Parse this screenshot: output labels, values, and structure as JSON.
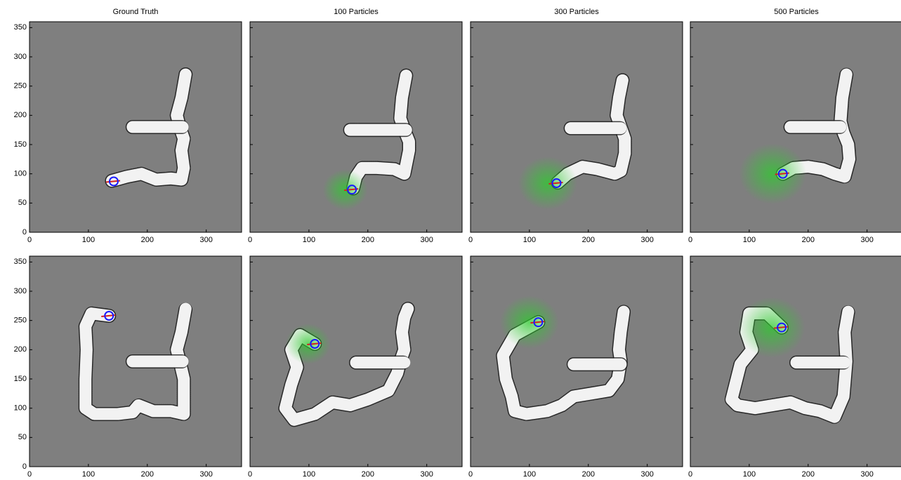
{
  "chart_data": [
    {
      "type": "map",
      "title": "Ground Truth",
      "xlim": [
        0,
        360
      ],
      "ylim": [
        0,
        360
      ],
      "xticks": [
        0,
        100,
        200,
        300
      ],
      "yticks": [
        0,
        50,
        100,
        150,
        200,
        250,
        300,
        350
      ],
      "x": [
        140,
        165,
        190,
        215,
        240,
        258,
        262,
        258,
        262,
        255,
        250,
        258,
        265
      ],
      "y": [
        88,
        95,
        100,
        90,
        92,
        90,
        110,
        140,
        160,
        180,
        200,
        230,
        270
      ],
      "branch_x": [
        175,
        260
      ],
      "branch_y": [
        180,
        180
      ],
      "robot_x": 143,
      "robot_y": 87
    },
    {
      "type": "map",
      "title": "100 Particles",
      "xlim": [
        0,
        360
      ],
      "ylim": [
        0,
        360
      ],
      "xticks": [
        0,
        100,
        200,
        300
      ],
      "yticks": [
        0,
        50,
        100,
        150,
        200,
        250,
        300,
        350
      ],
      "x": [
        175,
        180,
        190,
        215,
        245,
        262,
        270,
        270,
        262,
        255,
        258,
        265
      ],
      "y": [
        75,
        95,
        110,
        110,
        108,
        100,
        140,
        155,
        175,
        195,
        230,
        268
      ],
      "branch_x": [
        170,
        265
      ],
      "branch_y": [
        175,
        175
      ],
      "robot_x": 173,
      "robot_y": 73
    },
    {
      "type": "map",
      "title": "300 Particles",
      "xlim": [
        0,
        360
      ],
      "ylim": [
        0,
        360
      ],
      "xticks": [
        0,
        100,
        200,
        300
      ],
      "yticks": [
        0,
        50,
        100,
        150,
        200,
        250,
        300,
        350
      ],
      "x": [
        148,
        165,
        190,
        215,
        245,
        255,
        262,
        262,
        255,
        248,
        252,
        258
      ],
      "y": [
        85,
        100,
        112,
        108,
        100,
        105,
        135,
        160,
        180,
        200,
        230,
        260
      ],
      "branch_x": [
        170,
        255
      ],
      "branch_y": [
        178,
        178
      ],
      "robot_x": 146,
      "robot_y": 84
    },
    {
      "type": "map",
      "title": "500 Particles",
      "xlim": [
        0,
        360
      ],
      "ylim": [
        0,
        360
      ],
      "xticks": [
        0,
        100,
        200,
        300
      ],
      "yticks": [
        0,
        50,
        100,
        150,
        200,
        250,
        300,
        350
      ],
      "x": [
        157,
        175,
        200,
        225,
        245,
        262,
        270,
        268,
        260,
        255,
        258,
        265
      ],
      "y": [
        100,
        110,
        112,
        108,
        100,
        95,
        125,
        150,
        170,
        190,
        230,
        270
      ],
      "branch_x": [
        170,
        255
      ],
      "branch_y": [
        180,
        180
      ],
      "robot_x": 157,
      "robot_y": 100
    },
    {
      "type": "map",
      "xlim": [
        0,
        360
      ],
      "ylim": [
        0,
        360
      ],
      "xticks": [
        0,
        100,
        200,
        300
      ],
      "yticks": [
        0,
        50,
        100,
        150,
        200,
        250,
        300,
        350
      ],
      "x": [
        135,
        105,
        95,
        97,
        95,
        95,
        110,
        150,
        175,
        185,
        210,
        240,
        262,
        262,
        255,
        250,
        258,
        265
      ],
      "y": [
        258,
        262,
        240,
        200,
        150,
        100,
        90,
        90,
        93,
        105,
        95,
        95,
        90,
        150,
        180,
        200,
        230,
        270
      ],
      "branch_x": [
        175,
        260
      ],
      "branch_y": [
        180,
        180
      ],
      "robot_x": 135,
      "robot_y": 258
    },
    {
      "type": "map",
      "xlim": [
        0,
        360
      ],
      "ylim": [
        0,
        360
      ],
      "xticks": [
        0,
        100,
        200,
        300
      ],
      "yticks": [
        0,
        50,
        100,
        150,
        200,
        250,
        300,
        350
      ],
      "x": [
        110,
        85,
        70,
        80,
        70,
        60,
        75,
        110,
        140,
        170,
        200,
        235,
        250,
        255,
        262,
        258,
        262,
        268
      ],
      "y": [
        210,
        225,
        200,
        170,
        140,
        100,
        80,
        90,
        110,
        105,
        115,
        130,
        160,
        180,
        200,
        230,
        255,
        270
      ],
      "branch_x": [
        180,
        262
      ],
      "branch_y": [
        178,
        178
      ],
      "robot_x": 110,
      "robot_y": 210
    },
    {
      "type": "map",
      "xlim": [
        0,
        360
      ],
      "ylim": [
        0,
        360
      ],
      "xticks": [
        0,
        100,
        200,
        300
      ],
      "yticks": [
        0,
        50,
        100,
        150,
        200,
        250,
        300,
        350
      ],
      "x": [
        115,
        75,
        55,
        60,
        70,
        75,
        95,
        130,
        155,
        175,
        205,
        235,
        250,
        255,
        252,
        255,
        260
      ],
      "y": [
        247,
        225,
        190,
        150,
        120,
        95,
        90,
        95,
        105,
        120,
        125,
        130,
        150,
        180,
        200,
        230,
        265
      ],
      "branch_x": [
        175,
        255
      ],
      "branch_y": [
        175,
        175
      ],
      "robot_x": 115,
      "robot_y": 247
    },
    {
      "type": "map",
      "xlim": [
        0,
        360
      ],
      "ylim": [
        0,
        360
      ],
      "xticks": [
        0,
        100,
        200,
        300
      ],
      "yticks": [
        0,
        50,
        100,
        150,
        200,
        250,
        300,
        350
      ],
      "x": [
        155,
        130,
        100,
        95,
        105,
        85,
        70,
        80,
        110,
        140,
        170,
        195,
        220,
        245,
        260,
        265,
        262,
        268
      ],
      "y": [
        238,
        262,
        262,
        230,
        200,
        175,
        115,
        105,
        100,
        105,
        110,
        100,
        95,
        85,
        120,
        180,
        230,
        265
      ],
      "branch_x": [
        180,
        262
      ],
      "branch_y": [
        178,
        178
      ],
      "robot_x": 155,
      "robot_y": 238
    }
  ]
}
